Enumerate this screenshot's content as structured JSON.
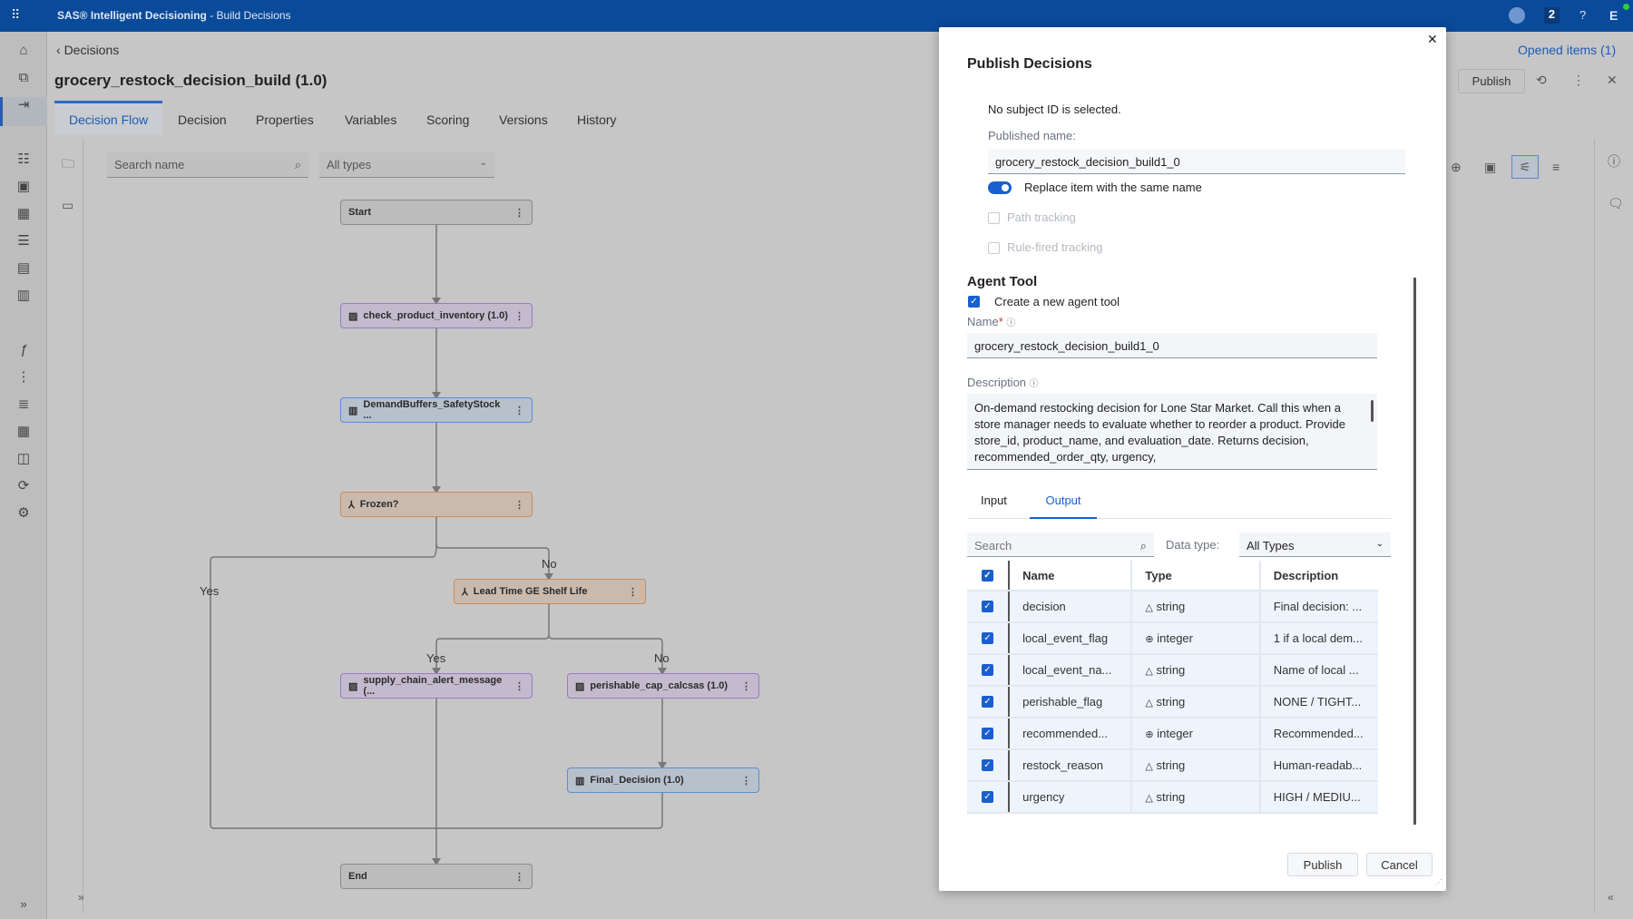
{
  "app": {
    "brand": "SAS® Intelligent Decisioning",
    "section": " - Build Decisions",
    "notifications": "2",
    "help": "?",
    "user_initial": "E"
  },
  "breadcrumb": "Decisions",
  "page_title": "grocery_restock_decision_build (1.0)",
  "opened_items": "Opened items (1)",
  "toolbar": {
    "publish_label": "Publish"
  },
  "tabs": [
    "Decision Flow",
    "Decision",
    "Properties",
    "Variables",
    "Scoring",
    "Versions",
    "History"
  ],
  "canvas": {
    "search_placeholder": "Search name",
    "type_filter": "All types",
    "nodes": {
      "start": "Start",
      "check": "check_product_inventory (1.0)",
      "demand": "DemandBuffers_SafetyStock ...",
      "frozen": "Frozen?",
      "leadtime": "Lead Time GE Shelf Life",
      "supply": "supply_chain_alert_message (...",
      "perishable": "perishable_cap_calcsas (1.0)",
      "final": "Final_Decision (1.0)",
      "end": "End"
    },
    "edge_labels": {
      "frozen_yes": "Yes",
      "frozen_no": "No",
      "lead_yes": "Yes",
      "lead_no": "No"
    }
  },
  "modal": {
    "title": "Publish Decisions",
    "subject_msg": "No subject ID is selected.",
    "published_name_label": "Published name:",
    "published_name": "grocery_restock_decision_build1_0",
    "replace_label": "Replace item with the same name",
    "replace_on": true,
    "path_tracking": "Path tracking",
    "rule_fired": "Rule-fired tracking",
    "agent_heading": "Agent Tool",
    "create_agent_label": "Create a new agent tool",
    "name_label": "Name",
    "required": "*",
    "name_value": "grocery_restock_decision_build1_0",
    "description_label": "Description",
    "description": "On-demand restocking decision for Lone Star Market. Call this when a store manager needs to evaluate whether to reorder a product. Provide store_id, product_name, and evaluation_date. Returns decision, recommended_order_qty, urgency,",
    "io_tabs": [
      "Input",
      "Output"
    ],
    "active_io_tab": "Output",
    "search_placeholder": "Search",
    "data_type_label": "Data type:",
    "data_type_value": "All Types",
    "columns": [
      "Name",
      "Type",
      "Description"
    ],
    "rows": [
      {
        "name": "decision",
        "type": "string",
        "description": "Final decision: ..."
      },
      {
        "name": "local_event_flag",
        "type": "integer",
        "description": "1 if a local dem..."
      },
      {
        "name": "local_event_na...",
        "type": "string",
        "description": "Name of local ..."
      },
      {
        "name": "perishable_flag",
        "type": "string",
        "description": "NONE / TIGHT..."
      },
      {
        "name": "recommended...",
        "type": "integer",
        "description": "Recommended..."
      },
      {
        "name": "restock_reason",
        "type": "string",
        "description": "Human-readab..."
      },
      {
        "name": "urgency",
        "type": "string",
        "description": "HIGH / MEDIU..."
      }
    ],
    "publish_label": "Publish",
    "cancel_label": "Cancel"
  },
  "colors": {
    "header": "#0a4a9a",
    "accent": "#1a5fd0"
  }
}
